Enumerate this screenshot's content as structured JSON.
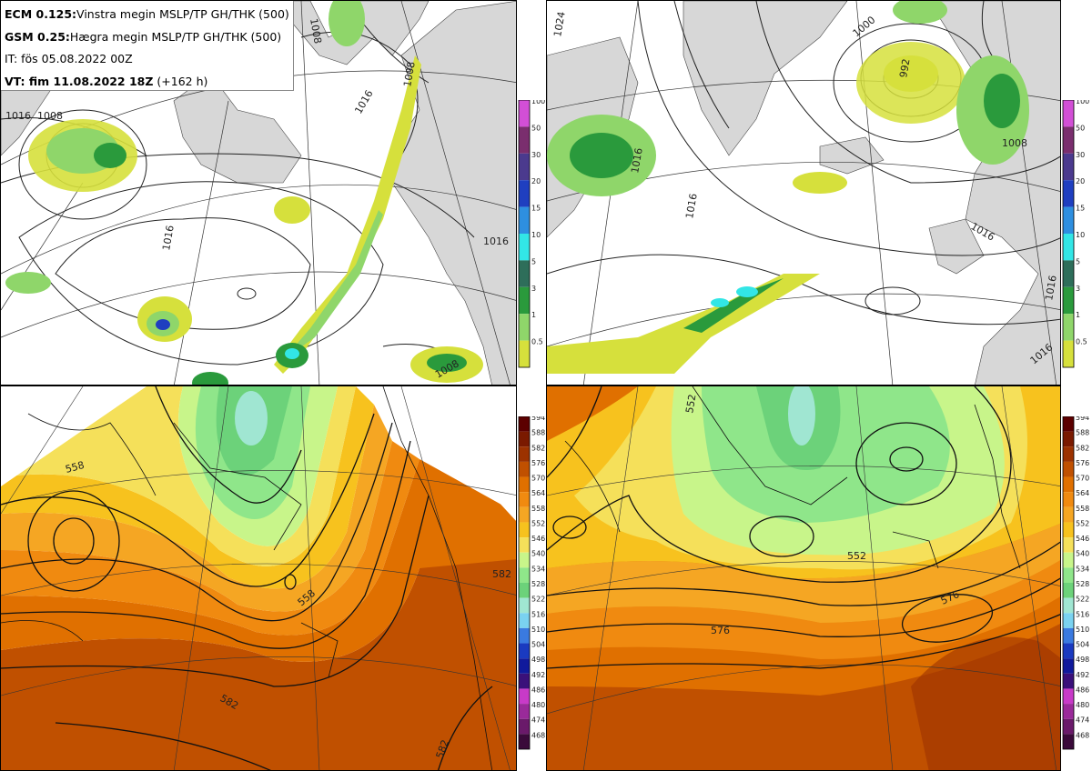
{
  "header": {
    "line1_bold": "ECM 0.125:",
    "line1_rest": "Vinstra megin MSLP/TP GH/THK (500)",
    "line2_bold": "GSM 0.25:",
    "line2_rest": "Hægra megin MSLP/TP GH/THK (500)",
    "line3": "IT: fös 05.08.2022 00Z",
    "line4_bold": "VT: fim 11.08.2022 18Z",
    "line4_rest": "(+162 h)"
  },
  "precip_colorbar": {
    "labels": [
      "100",
      "50",
      "30",
      "20",
      "15",
      "10",
      "5",
      "3",
      "1",
      "0.5"
    ],
    "colors": [
      "#d24fd6",
      "#7a2e6e",
      "#4b3a8e",
      "#1f3fc0",
      "#2e8fe0",
      "#32e6e6",
      "#2e6e5a",
      "#2a9a3c",
      "#8fd66a",
      "#d6e03c"
    ]
  },
  "gh_colorbar": {
    "labels": [
      "594",
      "588",
      "582",
      "576",
      "570",
      "564",
      "558",
      "552",
      "546",
      "540",
      "534",
      "528",
      "522",
      "516",
      "510",
      "504",
      "498",
      "492",
      "486",
      "480",
      "474",
      "468"
    ],
    "colors": [
      "#5c0000",
      "#7a1a00",
      "#9c3200",
      "#c05000",
      "#e07000",
      "#f08a10",
      "#f5a623",
      "#f7c21e",
      "#f5e05a",
      "#c8f58a",
      "#8fe68a",
      "#6cd27a",
      "#a0e6d2",
      "#7ad2f0",
      "#3a7ae0",
      "#1a3ac0",
      "#101a9c",
      "#3a107a",
      "#c83ac8",
      "#9a2a9a",
      "#6a1a6a",
      "#3a0a3a"
    ]
  },
  "map_labels": {
    "tl": [
      "1008",
      "1016",
      "1008",
      "1016",
      "1016",
      "1008",
      "1016",
      "1008"
    ],
    "tr": [
      "1016",
      "1000",
      "992",
      "1016",
      "1008",
      "1016",
      "1024",
      "1016",
      "1016"
    ],
    "bl": [
      "558",
      "558",
      "582",
      "582",
      "582"
    ],
    "br": [
      "552",
      "576",
      "576",
      "552"
    ]
  },
  "colors": {
    "land": "#d7d7d7",
    "sea": "#ffffff",
    "precip_light": "#d6e03c",
    "precip_green": "#8fd66a",
    "precip_dgreen": "#2a9a3c",
    "precip_blue": "#1f3fc0",
    "precip_cyan": "#32e6e6"
  }
}
